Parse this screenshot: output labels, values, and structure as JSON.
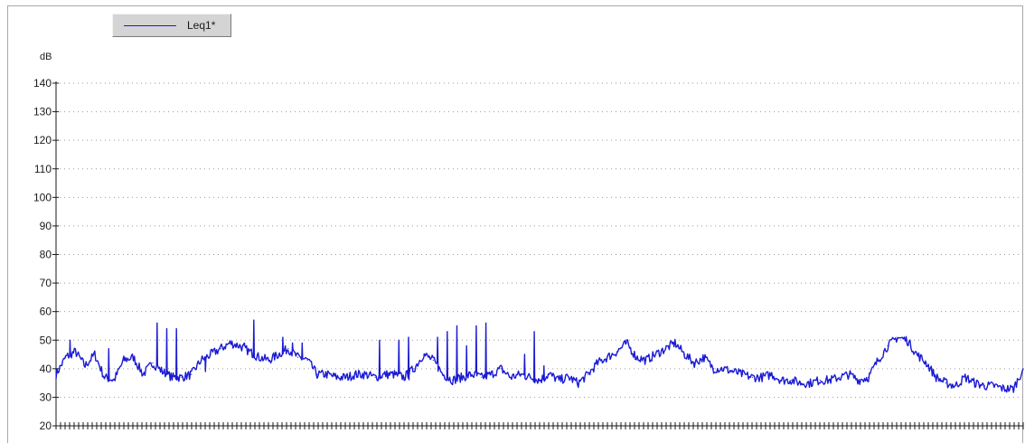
{
  "chart_data": {
    "type": "line",
    "title": "",
    "ylabel": "dB",
    "xlabel": "",
    "ylim": [
      20,
      140
    ],
    "yticks": [
      140,
      130,
      120,
      110,
      100,
      90,
      80,
      70,
      60,
      50,
      40,
      30,
      20
    ],
    "grid": true,
    "legend": "top-left",
    "series": [
      {
        "name": "Leq1*",
        "color": "#1a1ad4",
        "x": [
          0,
          2,
          4,
          6,
          8,
          10,
          12,
          14,
          16,
          18,
          20,
          22,
          24,
          26,
          28,
          30,
          32,
          34,
          36,
          38,
          40,
          42,
          44,
          46,
          48,
          50,
          52,
          54,
          56,
          58,
          60,
          62,
          64,
          66,
          68,
          70,
          72,
          74,
          76,
          78,
          80,
          82,
          84,
          86,
          88,
          90,
          92,
          94,
          96,
          98,
          100,
          102,
          104,
          106,
          108,
          110,
          112,
          114,
          116,
          118,
          120,
          122,
          124,
          126,
          128,
          130,
          132,
          134,
          136,
          138,
          140,
          142,
          144,
          146,
          148,
          150,
          152,
          154,
          156,
          158,
          160,
          162,
          164,
          166,
          168,
          170,
          172,
          174,
          176,
          178,
          180,
          182,
          184,
          186,
          188,
          190,
          192,
          194,
          196,
          198,
          200
        ],
        "values": [
          38,
          44,
          46,
          41,
          45,
          37,
          36,
          43,
          44,
          38,
          42,
          39,
          37,
          37,
          38,
          43,
          45,
          47,
          49,
          48,
          46,
          44,
          43,
          45,
          47,
          44,
          43,
          38,
          38,
          37,
          37,
          38,
          38,
          37,
          38,
          38,
          37,
          40,
          45,
          43,
          38,
          36,
          37,
          38,
          37,
          38,
          40,
          37,
          38,
          37,
          36,
          38,
          36,
          37,
          35,
          38,
          42,
          44,
          46,
          49,
          44,
          43,
          45,
          47,
          49,
          45,
          42,
          44,
          40,
          40,
          39,
          38,
          37,
          37,
          38,
          36,
          36,
          35,
          35,
          36,
          36,
          37,
          38,
          36,
          37,
          43,
          48,
          51,
          50,
          45,
          42,
          37,
          35,
          34,
          37,
          35,
          34,
          34,
          33,
          33,
          40
        ],
        "spikes": [
          [
            2,
            50
          ],
          [
            5,
            51
          ],
          [
            10,
            47
          ],
          [
            20,
            56
          ],
          [
            21,
            56
          ],
          [
            22,
            54
          ],
          [
            24,
            54
          ],
          [
            30,
            39
          ],
          [
            38,
            49
          ],
          [
            40,
            57
          ],
          [
            41,
            47
          ],
          [
            43,
            50
          ],
          [
            45,
            52
          ],
          [
            46,
            51
          ],
          [
            48,
            49
          ],
          [
            50,
            49
          ],
          [
            57,
            54
          ],
          [
            59,
            55
          ],
          [
            61,
            54
          ],
          [
            63,
            51
          ],
          [
            66,
            50
          ],
          [
            70,
            50
          ],
          [
            72,
            51
          ],
          [
            73,
            49
          ],
          [
            78,
            51
          ],
          [
            80,
            53
          ],
          [
            82,
            55
          ],
          [
            84,
            48
          ],
          [
            86,
            55
          ],
          [
            88,
            56
          ],
          [
            96,
            45
          ],
          [
            98,
            53
          ],
          [
            100,
            41
          ]
        ]
      }
    ]
  }
}
